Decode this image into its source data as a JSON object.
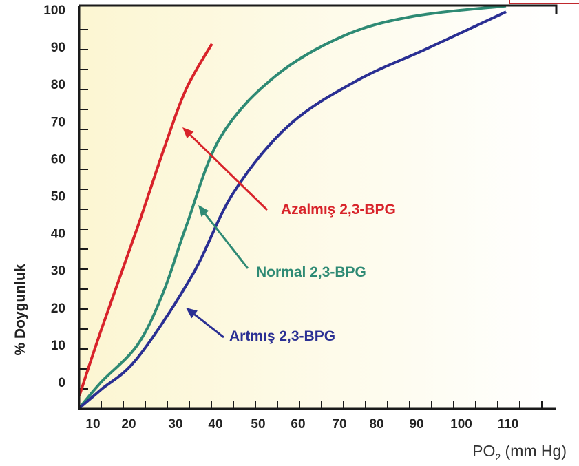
{
  "chart_data": {
    "type": "line",
    "title": "",
    "xlabel": "PO",
    "xlabel_sub": "2",
    "xlabel_unit": " (mm Hg)",
    "ylabel": "% Doygunluk",
    "xticks": [
      10,
      20,
      30,
      40,
      50,
      60,
      70,
      80,
      90,
      100,
      110
    ],
    "yticks": [
      0,
      10,
      20,
      30,
      40,
      50,
      60,
      70,
      80,
      90,
      100
    ],
    "xlim": [
      6.7,
      122
    ],
    "ylim": [
      -7.2,
      101
    ],
    "grid": false,
    "series": [
      {
        "name": "Azalmış 2,3-BPG",
        "color": "#d8232a",
        "x": [
          6.7,
          12,
          20.8,
          27,
          32.5,
          38.8
        ],
        "y": [
          -3.7,
          14,
          41.6,
          62,
          78.5,
          90.8
        ]
      },
      {
        "name": "Normal 2,3-BPG",
        "color": "#2e8a74",
        "x": [
          6.7,
          12,
          20.8,
          27,
          32.5,
          40.8,
          54,
          70.8,
          87.5,
          110
        ],
        "y": [
          -7,
          0,
          10,
          24,
          41.6,
          65.6,
          82,
          93,
          98.2,
          101
        ]
      },
      {
        "name": "Artmış 2,3-BPG",
        "color": "#2a2f93",
        "x": [
          6.7,
          12,
          20.8,
          34,
          44,
          57.5,
          74,
          91,
          110
        ],
        "y": [
          -7,
          -2,
          6.5,
          28.6,
          50.8,
          69,
          81,
          89.6,
          99.4
        ]
      }
    ],
    "annotations": [
      {
        "text": "Azalmış 2,3-BPG",
        "color": "#d8232a"
      },
      {
        "text": "Normal 2,3-BPG",
        "color": "#2e8a74"
      },
      {
        "text": "Artmış 2,3-BPG",
        "color": "#2a2f93"
      }
    ]
  }
}
